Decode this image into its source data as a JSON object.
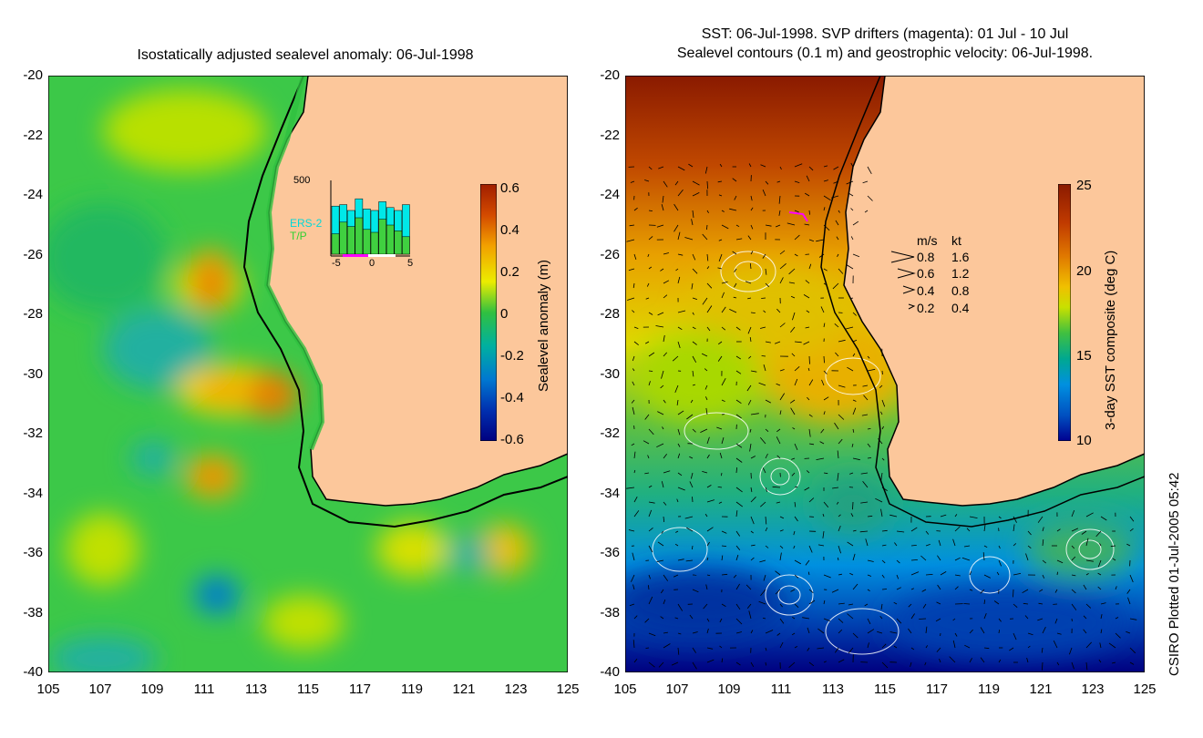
{
  "left_panel": {
    "title": "Isostatically adjusted sealevel anomaly: 06-Jul-1998",
    "colorbar": {
      "title": "Sealevel anomaly (m)",
      "ticks": [
        "0.6",
        "0.4",
        "0.2",
        "0",
        "-0.2",
        "-0.4",
        "-0.6"
      ],
      "colors": [
        "#a01e00",
        "#d34a00",
        "#f2a000",
        "#ecec00",
        "#9ad600",
        "#30c040",
        "#00b0a0",
        "#0078d0",
        "#0030b0",
        "#000080"
      ]
    },
    "inset": {
      "ymax_label": "500",
      "series": [
        "ERS-2",
        "T/P"
      ],
      "x_ticks": [
        "-5",
        "0",
        "5"
      ],
      "ers2_values": [
        330,
        340,
        300,
        380,
        310,
        300,
        360,
        320,
        300,
        340
      ],
      "tp_values": [
        140,
        220,
        190,
        250,
        170,
        150,
        240,
        200,
        160,
        120
      ]
    }
  },
  "right_panel": {
    "title_line1": "SST: 06-Jul-1998. SVP drifters (magenta): 01 Jul - 10 Jul",
    "title_line2": "Sealevel contours (0.1 m) and geostrophic velocity: 06-Jul-1998.",
    "colorbar": {
      "title": "3-day SST composite (deg C)",
      "ticks": [
        "25",
        "20",
        "15",
        "10"
      ],
      "colors": [
        "#8a1a00",
        "#c03a00",
        "#e07800",
        "#f0c000",
        "#c8e000",
        "#40c040",
        "#00a890",
        "#0090e0",
        "#0050c0",
        "#000090"
      ]
    },
    "legend": {
      "header_ms": "m/s",
      "header_kt": "kt",
      "rows": [
        {
          "ms": "0.8",
          "kt": "1.6"
        },
        {
          "ms": "0.6",
          "kt": "1.2"
        },
        {
          "ms": "0.4",
          "kt": "0.8"
        },
        {
          "ms": "0.2",
          "kt": "0.4"
        }
      ]
    }
  },
  "axes": {
    "lat_ticks": [
      "-20",
      "-22",
      "-24",
      "-26",
      "-28",
      "-30",
      "-32",
      "-34",
      "-36",
      "-38",
      "-40"
    ],
    "lon_ticks": [
      "105",
      "107",
      "109",
      "111",
      "113",
      "115",
      "117",
      "119",
      "121",
      "123",
      "125"
    ]
  },
  "footer_note": "CSIRO Plotted 01-Jul-2005 05:42",
  "colors": {
    "land": "#fcc79b",
    "coast": "#000000"
  }
}
